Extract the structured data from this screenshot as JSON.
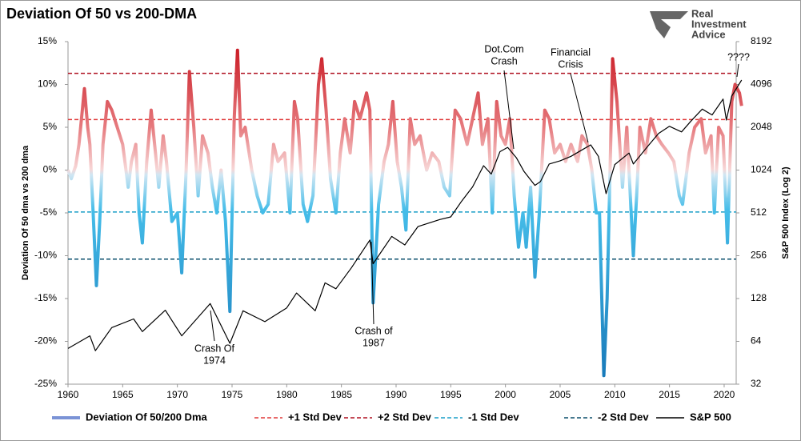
{
  "chart_data": {
    "type": "line",
    "title": "Deviation Of 50 vs 200-DMA",
    "logo": [
      "Real",
      "Investment",
      "Advice"
    ],
    "ylabel": "Deviation Of 50 dma vs 200 dma",
    "y2label": "S&P 500 Index (Log 2)",
    "xlim": [
      1960,
      2021.1
    ],
    "xticks": [
      1960,
      1965,
      1970,
      1975,
      1980,
      1985,
      1990,
      1995,
      2000,
      2005,
      2010,
      2015,
      2020
    ],
    "ylim": [
      -25,
      15
    ],
    "yticks": [
      {
        "value": -25,
        "label": "-25%"
      },
      {
        "value": -20,
        "label": "-20%"
      },
      {
        "value": -15,
        "label": "-15%"
      },
      {
        "value": -10,
        "label": "-10%"
      },
      {
        "value": -5,
        "label": "-5%"
      },
      {
        "value": 0,
        "label": "0%"
      },
      {
        "value": 5,
        "label": "5%"
      },
      {
        "value": 10,
        "label": "10%"
      },
      {
        "value": 15,
        "label": "15%"
      }
    ],
    "y2lim": [
      32,
      8192
    ],
    "y2ticks": [
      32,
      64,
      128,
      256,
      512,
      1024,
      2048,
      4096,
      8192
    ],
    "y2_log_base": 2,
    "legend": "bottom",
    "series": [
      {
        "name": "Deviation Of 50/200 Dma",
        "color": "#7b93d6",
        "gradient": true,
        "x": [
          1960.0,
          1960.3,
          1960.7,
          1961.0,
          1961.5,
          1961.8,
          1962.0,
          1962.3,
          1962.6,
          1962.9,
          1963.2,
          1963.6,
          1964.0,
          1964.5,
          1965.0,
          1965.5,
          1965.8,
          1966.2,
          1966.5,
          1966.8,
          1967.2,
          1967.6,
          1968.0,
          1968.3,
          1968.7,
          1969.0,
          1969.5,
          1970.0,
          1970.4,
          1970.8,
          1971.1,
          1971.5,
          1971.9,
          1972.3,
          1972.8,
          1973.2,
          1973.6,
          1974.0,
          1974.4,
          1974.8,
          1975.2,
          1975.5,
          1975.8,
          1976.2,
          1976.8,
          1977.3,
          1977.8,
          1978.3,
          1978.8,
          1979.2,
          1979.8,
          1980.3,
          1980.7,
          1981.0,
          1981.5,
          1981.9,
          1982.4,
          1982.9,
          1983.2,
          1983.6,
          1984.0,
          1984.5,
          1984.9,
          1985.3,
          1985.8,
          1986.2,
          1986.7,
          1987.3,
          1987.6,
          1987.9,
          1988.4,
          1988.9,
          1989.3,
          1989.7,
          1990.1,
          1990.5,
          1990.9,
          1991.3,
          1991.7,
          1992.2,
          1992.8,
          1993.3,
          1993.9,
          1994.4,
          1994.9,
          1995.4,
          1995.9,
          1996.5,
          1997.0,
          1997.5,
          1997.9,
          1998.4,
          1998.8,
          1999.2,
          1999.6,
          2000.0,
          2000.4,
          2000.8,
          2001.2,
          2001.6,
          2001.9,
          2002.3,
          2002.7,
          2003.1,
          2003.6,
          2004.0,
          2004.5,
          2005.0,
          2005.5,
          2006.0,
          2006.6,
          2007.0,
          2007.5,
          2007.9,
          2008.3,
          2008.6,
          2009.0,
          2009.3,
          2009.8,
          2010.2,
          2010.7,
          2011.1,
          2011.7,
          2012.0,
          2012.3,
          2012.8,
          2013.3,
          2013.8,
          2014.3,
          2014.9,
          2015.4,
          2015.9,
          2016.2,
          2016.8,
          2017.3,
          2017.9,
          2018.3,
          2018.8,
          2019.1,
          2019.5,
          2019.9,
          2020.3,
          2020.7,
          2021.0,
          2021.4,
          2021.6
        ],
        "values": [
          0,
          -1,
          0.5,
          3,
          9.5,
          5,
          3,
          -5,
          -13.5,
          -6,
          3,
          8,
          7,
          5,
          3,
          -2,
          1,
          3,
          -5,
          -8.5,
          1,
          7,
          2,
          -2,
          4,
          1,
          -6,
          -5,
          -12,
          0,
          11.5,
          5,
          -3,
          4,
          2,
          -2,
          -5,
          0,
          -6,
          -16.5,
          6,
          14,
          4,
          5,
          0,
          -3,
          -5,
          -4,
          3,
          1,
          2,
          -5,
          8,
          6,
          -4,
          -6,
          -3,
          10,
          13,
          7,
          -1,
          -5,
          2,
          6,
          2,
          8,
          6,
          9,
          7,
          -15.5,
          -4,
          1,
          3,
          8,
          1,
          -2,
          -7,
          6,
          3,
          4,
          0,
          2,
          1,
          -2,
          -3,
          7,
          6,
          3,
          6,
          9,
          3,
          6,
          -5,
          8,
          4,
          3,
          6,
          -3,
          -9,
          -5,
          -9,
          -2,
          -12.5,
          -5,
          7,
          6,
          2,
          3,
          1,
          3,
          1,
          4,
          3,
          0,
          -5,
          -5,
          -24,
          -15,
          13,
          8,
          -2,
          5,
          -10,
          -3,
          5,
          2,
          6,
          4,
          3,
          2,
          1,
          -3,
          -4,
          2,
          5,
          6,
          2,
          4,
          -5,
          5,
          4,
          -8.5,
          8,
          10,
          9,
          7.5
        ]
      },
      {
        "name": "S&P 500",
        "color": "#000000",
        "axis": "y2",
        "x": [
          1960,
          1962,
          1962.5,
          1964,
          1966,
          1966.8,
          1968.9,
          1970.4,
          1973.0,
          1974.8,
          1976,
          1978,
          1980,
          1980.9,
          1982.6,
          1983.5,
          1984.5,
          1985.9,
          1987.6,
          1987.9,
          1989.6,
          1990.8,
          1992,
          1994,
          1995,
          1996,
          1997,
          1998,
          1998.7,
          1999.5,
          2000.2,
          2001,
          2001.7,
          2002.7,
          2003.2,
          2004,
          2005,
          2006,
          2007,
          2007.8,
          2008.5,
          2009.2,
          2010,
          2011.3,
          2011.7,
          2013,
          2014,
          2015,
          2016.1,
          2017,
          2018,
          2018.9,
          2019.9,
          2020.2,
          2020.7,
          2021.6
        ],
        "values": [
          57,
          70,
          55,
          80,
          92,
          75,
          106,
          70,
          118,
          62,
          105,
          88,
          110,
          140,
          105,
          165,
          150,
          210,
          330,
          225,
          350,
          305,
          410,
          460,
          480,
          620,
          780,
          1100,
          960,
          1380,
          1480,
          1250,
          1000,
          800,
          850,
          1130,
          1190,
          1280,
          1420,
          1540,
          1280,
          700,
          1120,
          1350,
          1130,
          1500,
          1850,
          2080,
          1900,
          2280,
          2750,
          2500,
          3230,
          2300,
          3400,
          4400
        ]
      }
    ],
    "reference_lines": [
      {
        "name": "+1 Std Dev",
        "value": 5.9,
        "color": "#e03a3a"
      },
      {
        "name": "+2 Std Dev",
        "value": 11.3,
        "color": "#b01020"
      },
      {
        "name": "-1 Std Dev",
        "value": -4.9,
        "color": "#1a9fc8"
      },
      {
        "name": "-2 Std Dev",
        "value": -10.4,
        "color": "#0b4f6c"
      }
    ],
    "annotations": [
      {
        "text": [
          "Dot.Com",
          "Crash"
        ]
      },
      {
        "text": [
          "Financial",
          "Crisis"
        ]
      },
      {
        "text": [
          "????"
        ]
      },
      {
        "text": [
          "Crash Of",
          "1974"
        ]
      },
      {
        "text": [
          "Crash of",
          "1987"
        ]
      }
    ]
  }
}
